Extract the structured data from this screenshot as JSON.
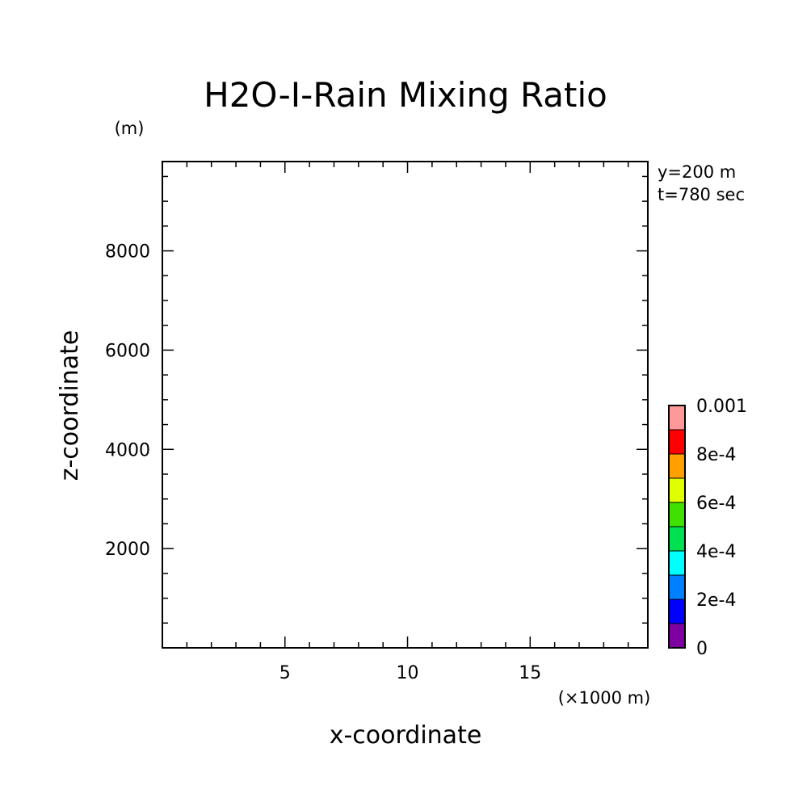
{
  "chart_data": {
    "type": "heatmap",
    "title": "H2O-I-Rain Mixing Ratio",
    "xlabel": "x-coordinate",
    "ylabel": "z-coordinate",
    "x_unit": "(×1000 m)",
    "y_unit": "(m)",
    "xlim": [
      0,
      19.8
    ],
    "ylim": [
      0,
      9800
    ],
    "x_major_ticks": [
      5,
      10,
      15
    ],
    "x_tick_labels": [
      "5",
      "10",
      "15"
    ],
    "x_minor_ticks": [
      1,
      2,
      3,
      4,
      6,
      7,
      8,
      9,
      11,
      12,
      13,
      14,
      16,
      17,
      18,
      19
    ],
    "y_major_ticks": [
      2000,
      4000,
      6000,
      8000
    ],
    "y_tick_labels": [
      "2000",
      "4000",
      "6000",
      "8000"
    ],
    "y_minor_ticks": [
      500,
      1000,
      1500,
      2500,
      3000,
      3500,
      4500,
      5000,
      5500,
      6500,
      7000,
      7500,
      8500,
      9000,
      9500
    ],
    "annotations": [
      "y=200 m",
      "t=780 sec"
    ],
    "field_values": [],
    "colorbar": {
      "range": [
        0,
        0.001
      ],
      "levels": [
        0,
        0.0001,
        0.0002,
        0.0003,
        0.0004,
        0.0005,
        0.0006,
        0.0007,
        0.0008,
        0.0009,
        0.001
      ],
      "colors": [
        "#7f00a0",
        "#0000ff",
        "#0080ff",
        "#00ffff",
        "#00e050",
        "#40e000",
        "#e0ff00",
        "#ffa000",
        "#ff0000",
        "#ff9999"
      ],
      "tick_values": [
        0,
        0.0002,
        0.0004,
        0.0006,
        0.0008,
        0.001
      ],
      "tick_labels": [
        "0",
        "2e-4",
        "4e-4",
        "6e-4",
        "8e-4",
        "0.001"
      ]
    }
  }
}
